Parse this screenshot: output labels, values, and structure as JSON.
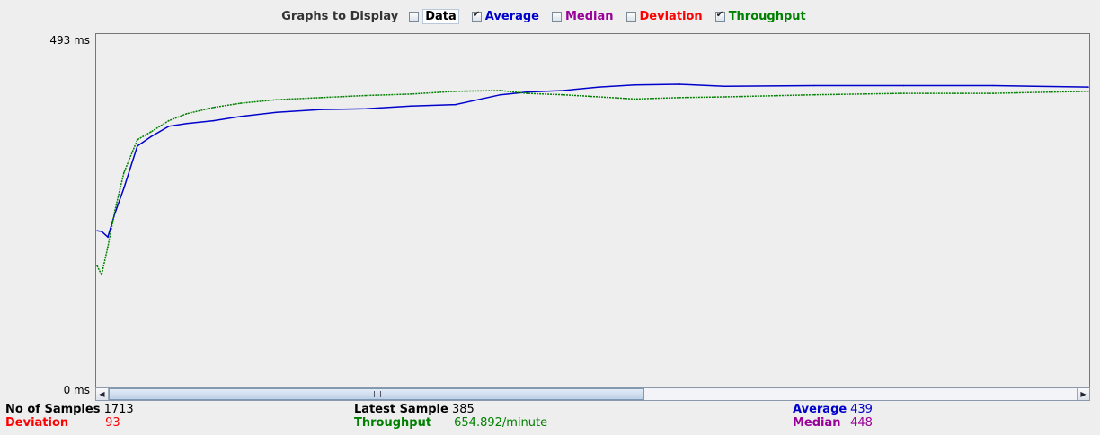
{
  "toolbar": {
    "title": "Graphs to Display",
    "options": [
      {
        "label": "Data",
        "checked": false,
        "color": "#000000"
      },
      {
        "label": "Average",
        "checked": true,
        "color": "#0000cc"
      },
      {
        "label": "Median",
        "checked": false,
        "color": "#990099"
      },
      {
        "label": "Deviation",
        "checked": false,
        "color": "#ff0000"
      },
      {
        "label": "Throughput",
        "checked": true,
        "color": "#008000"
      }
    ]
  },
  "chart_data": {
    "type": "line",
    "ylabel_top": "493 ms",
    "ylabel_bottom": "0 ms",
    "ylim": [
      0,
      493
    ],
    "x": [
      0,
      5,
      12,
      20,
      30,
      45,
      60,
      80,
      100,
      130,
      160,
      200,
      250,
      300,
      350,
      400,
      450,
      480,
      520,
      560,
      600,
      650,
      700,
      800,
      900,
      1000,
      1106
    ],
    "series": [
      {
        "name": "Average",
        "color": "#0000cc",
        "values": [
          220,
          219,
          211,
          245,
          281,
          341,
          354,
          369,
          373,
          377,
          383,
          389,
          393,
          394,
          398,
          400,
          414,
          418,
          420,
          425,
          428,
          429,
          426,
          427,
          427,
          427,
          425
        ]
      },
      {
        "name": "Throughput",
        "color": "#008000",
        "values": [
          170,
          157,
          197,
          249,
          303,
          350,
          361,
          377,
          387,
          396,
          402,
          407,
          410,
          413,
          415,
          419,
          420,
          416,
          414,
          411,
          408,
          410,
          411,
          414,
          416,
          416,
          419
        ]
      }
    ]
  },
  "stats": {
    "samples_label": "No of Samples",
    "samples_value": "1713",
    "deviation_label": "Deviation",
    "deviation_value": "93",
    "latest_label": "Latest Sample",
    "latest_value": "385",
    "throughput_label": "Throughput",
    "throughput_value": "654.892/minute",
    "average_label": "Average",
    "average_value": "439",
    "median_label": "Median",
    "median_value": "448"
  },
  "colors": {
    "average": "#0000cc",
    "median": "#990099",
    "deviation": "#ff0000",
    "throughput": "#008000",
    "label": "#000000"
  }
}
